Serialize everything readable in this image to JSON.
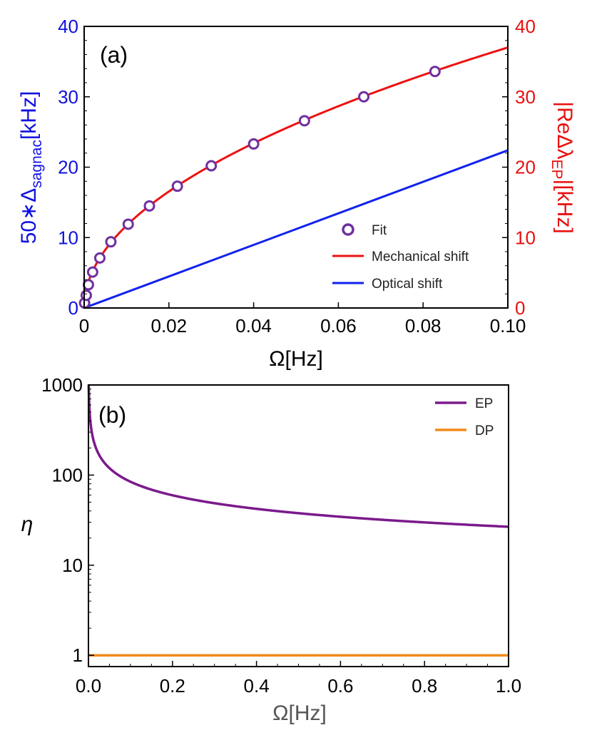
{
  "chart_data": [
    {
      "panel": "(a)",
      "type": "line",
      "xlabel": "Ω[Hz]",
      "xlim": [
        0,
        0.1
      ],
      "xticks": [
        "0",
        "0.02",
        "0.04",
        "0.06",
        "0.08",
        "0.10"
      ],
      "xtick_values": [
        0,
        0.02,
        0.04,
        0.06,
        0.08,
        0.1
      ],
      "ylabel_left": "50∗Δsagnac[kHz]",
      "ylabel_left_main": "50∗Δ",
      "ylabel_left_sub": "sagnac",
      "ylabel_left_tail": "[kHz]",
      "ylabel_right": "|ReΔλEP|[kHz]",
      "ylabel_right_main": "|ReΔλ",
      "ylabel_right_sub": "EP",
      "ylabel_right_tail": "|[kHz]",
      "ylim_left": [
        0,
        40
      ],
      "ylim_right": [
        0,
        40
      ],
      "yticks": [
        "0",
        "10",
        "20",
        "30",
        "40"
      ],
      "ytick_values": [
        0,
        10,
        20,
        30,
        40
      ],
      "colors": {
        "left_axis": "#1010e0",
        "right_axis": "#e81010",
        "fit": "#7030a0",
        "mechanical": "#ee1111",
        "optical": "#1122ee"
      },
      "legend_position": "bottom-right",
      "series": [
        {
          "name": "Fit",
          "kind": "markers",
          "x": [
            0.0001,
            0.0005,
            0.001,
            0.002,
            0.0037,
            0.0063,
            0.0104,
            0.0154,
            0.022,
            0.03,
            0.04,
            0.052,
            0.066,
            0.0828
          ],
          "y": [
            0.7,
            1.8,
            3.3,
            5.1,
            7.1,
            9.4,
            11.9,
            14.5,
            17.3,
            20.2,
            23.3,
            26.6,
            30.0,
            33.6
          ]
        },
        {
          "name": "Mechanical shift",
          "kind": "line",
          "model": "y = 117·Ω^0.5 (kHz)"
        },
        {
          "name": "Optical shift",
          "kind": "line",
          "model": "y = 224·Ω (kHz, scaled ×50)"
        }
      ]
    },
    {
      "panel": "(b)",
      "type": "line",
      "xlabel": "Ω[Hz]",
      "xlim": [
        0,
        1.0
      ],
      "xticks": [
        "0.0",
        "0.2",
        "0.4",
        "0.6",
        "0.8",
        "1.0"
      ],
      "xtick_values": [
        0,
        0.2,
        0.4,
        0.6,
        0.8,
        1.0
      ],
      "ylabel": "η",
      "yscale": "log",
      "ylim": [
        0.75,
        1000
      ],
      "yticks": [
        "1",
        "10",
        "100",
        "1000"
      ],
      "ytick_values": [
        1,
        10,
        100,
        1000
      ],
      "legend_position": "top-right",
      "colors": {
        "EP": "#7b1a8c",
        "DP": "#f28a1a"
      },
      "series": [
        {
          "name": "EP",
          "model": "η = 26.7·Ω^-0.5"
        },
        {
          "name": "DP",
          "model": "η = 1"
        }
      ]
    }
  ]
}
